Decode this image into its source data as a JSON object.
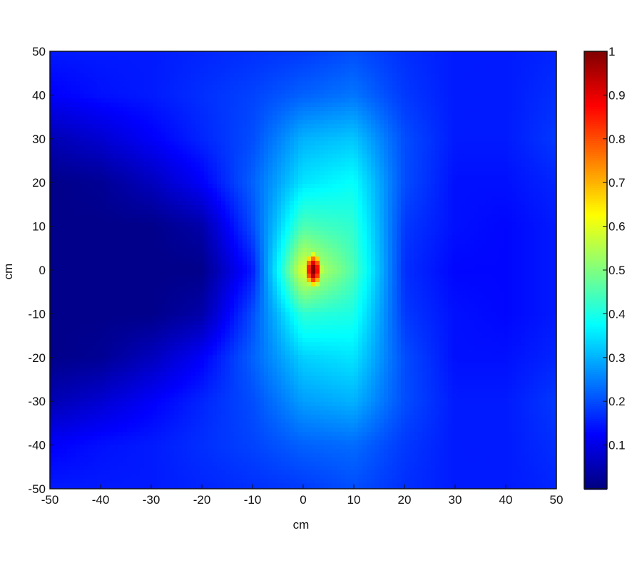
{
  "chart_data": {
    "type": "heatmap",
    "title": "",
    "xlabel": "cm",
    "ylabel": "cm",
    "xlim": [
      -50,
      50
    ],
    "ylim": [
      -50,
      50
    ],
    "xticks": [
      "-50",
      "-40",
      "-30",
      "-20",
      "-10",
      "0",
      "10",
      "20",
      "30",
      "40",
      "50"
    ],
    "yticks": [
      "50",
      "40",
      "30",
      "20",
      "10",
      "0",
      "-10",
      "-20",
      "-30",
      "-40",
      "-50"
    ],
    "colormap": "jet",
    "colorbar": {
      "range": [
        0,
        1
      ],
      "ticks": [
        "1",
        "0.9",
        "0.8",
        "0.7",
        "0.6",
        "0.5",
        "0.4",
        "0.3",
        "0.2",
        "0.1"
      ],
      "tick_values": [
        1,
        0.9,
        0.8,
        0.7,
        0.6,
        0.5,
        0.4,
        0.3,
        0.2,
        0.1
      ]
    },
    "grid_x": [
      -50,
      -40,
      -30,
      -20,
      -10,
      0,
      10,
      20,
      30,
      40,
      50
    ],
    "grid_y": [
      50,
      40,
      30,
      20,
      10,
      0,
      -10,
      -20,
      -30,
      -40,
      -50
    ],
    "values": [
      [
        0.15,
        0.15,
        0.15,
        0.16,
        0.17,
        0.18,
        0.2,
        0.17,
        0.15,
        0.15,
        0.16
      ],
      [
        0.12,
        0.14,
        0.15,
        0.17,
        0.19,
        0.22,
        0.24,
        0.18,
        0.15,
        0.15,
        0.17
      ],
      [
        0.05,
        0.08,
        0.12,
        0.16,
        0.2,
        0.3,
        0.32,
        0.2,
        0.15,
        0.15,
        0.18
      ],
      [
        0.01,
        0.02,
        0.06,
        0.12,
        0.22,
        0.35,
        0.38,
        0.2,
        0.14,
        0.14,
        0.16
      ],
      [
        0.01,
        0.01,
        0.01,
        0.04,
        0.2,
        0.45,
        0.42,
        0.18,
        0.14,
        0.13,
        0.15
      ],
      [
        0.01,
        0.01,
        0.01,
        0.01,
        0.15,
        0.6,
        0.45,
        0.17,
        0.13,
        0.13,
        0.15
      ],
      [
        0.01,
        0.01,
        0.01,
        0.04,
        0.2,
        0.42,
        0.4,
        0.18,
        0.14,
        0.13,
        0.15
      ],
      [
        0.01,
        0.02,
        0.06,
        0.12,
        0.22,
        0.33,
        0.35,
        0.2,
        0.14,
        0.14,
        0.16
      ],
      [
        0.05,
        0.08,
        0.12,
        0.16,
        0.2,
        0.28,
        0.3,
        0.2,
        0.15,
        0.15,
        0.18
      ],
      [
        0.12,
        0.14,
        0.15,
        0.17,
        0.19,
        0.22,
        0.23,
        0.18,
        0.15,
        0.15,
        0.17
      ],
      [
        0.15,
        0.15,
        0.15,
        0.16,
        0.17,
        0.18,
        0.2,
        0.17,
        0.15,
        0.15,
        0.16
      ]
    ],
    "peak": {
      "x": 2,
      "y": 0,
      "value": 1
    }
  }
}
